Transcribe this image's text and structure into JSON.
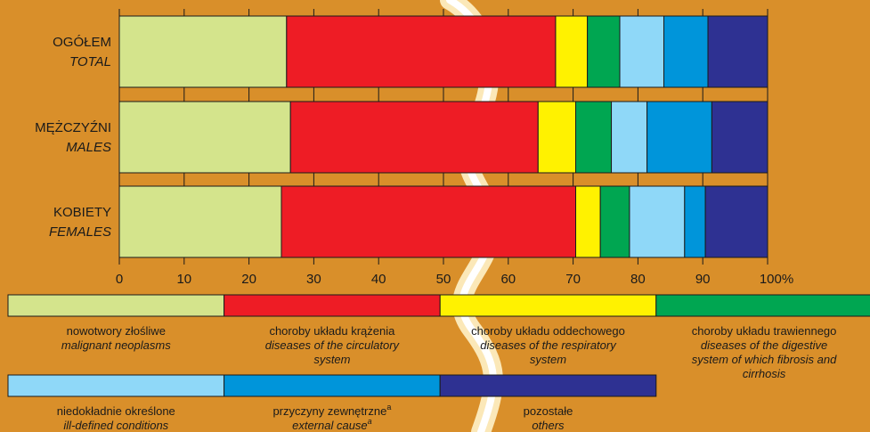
{
  "chart_data": {
    "type": "bar",
    "orientation": "horizontal",
    "stacked": true,
    "stack_mode": "percent",
    "categories": [
      {
        "pl": "OGÓŁEM",
        "en": "TOTAL"
      },
      {
        "pl": "MĘŻCZYŹNI",
        "en": "MALES"
      },
      {
        "pl": "KOBIETY",
        "en": "FEMALES"
      }
    ],
    "series": [
      {
        "name_pl": "nowotwory złośliwe",
        "name_en": "malignant neoplasms",
        "color": "#d4e48c",
        "values": [
          25.8,
          26.4,
          25.0
        ]
      },
      {
        "name_pl": "choroby układu krążenia",
        "name_en": "diseases of the circulatory system",
        "color": "#ee1c25",
        "values": [
          41.5,
          38.2,
          45.4
        ]
      },
      {
        "name_pl": "choroby układu oddechowego",
        "name_en": "diseases of the respiratory system",
        "color": "#fff200",
        "values": [
          4.9,
          5.8,
          3.8
        ]
      },
      {
        "name_pl": "choroby układu trawiennego",
        "name_en": "diseases of the digestive system of which fibrosis and cirrhosis",
        "color": "#00a651",
        "values": [
          5.0,
          5.5,
          4.5
        ]
      },
      {
        "name_pl": "niedokładnie określone",
        "name_en": "ill-defined conditions",
        "color": "#8fd8f8",
        "values": [
          6.8,
          5.5,
          8.5
        ]
      },
      {
        "name_pl": "przyczyny zewnętrzne",
        "name_en": "external cause",
        "name_suffix": "a",
        "color": "#0095da",
        "values": [
          6.8,
          10.0,
          3.2
        ]
      },
      {
        "name_pl": "pozostałe",
        "name_en": "others",
        "color": "#2e3192",
        "values": [
          9.2,
          8.6,
          9.6
        ]
      }
    ],
    "xlim": [
      0,
      100
    ],
    "xticks": [
      "0",
      "10",
      "20",
      "30",
      "40",
      "50",
      "60",
      "70",
      "80",
      "90",
      "100%"
    ],
    "grid": false,
    "legend_position": "bottom"
  }
}
